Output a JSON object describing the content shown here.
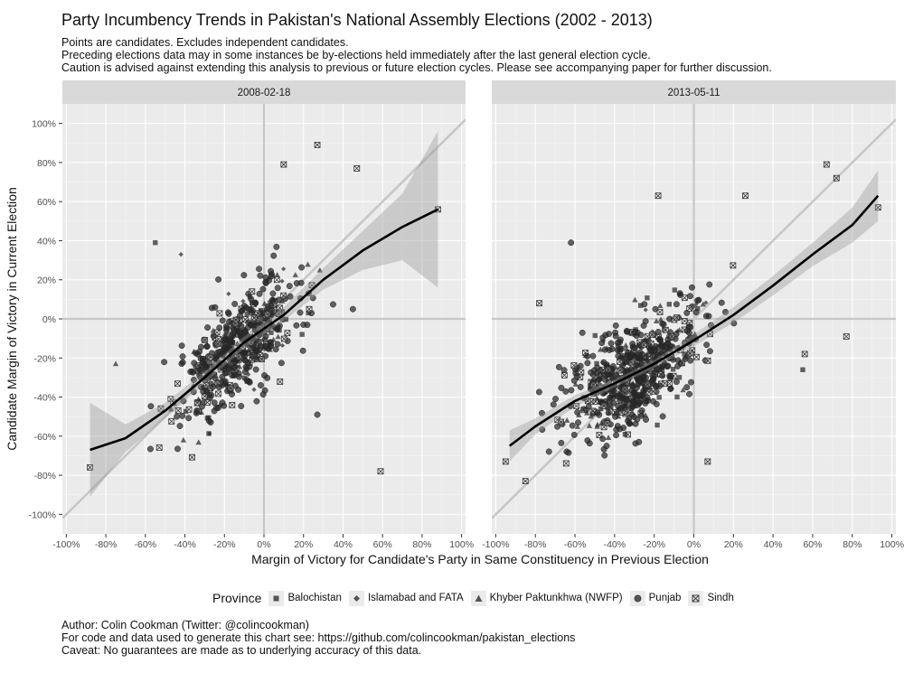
{
  "title": "Party Incumbency Trends in Pakistan's National Assembly Elections (2002 - 2013)",
  "subtitle": [
    "Points are candidates. Excludes independent candidates.",
    "Preceding elections data may in some instances be by-elections held immediately after the last general election cycle.",
    "Caution is advised against extending this analysis to previous or future election cycles. Please see accompanying paper for further discussion."
  ],
  "caption": [
    "Author: Colin Cookman (Twitter: @colincookman)",
    "For code and data used to generate this chart see: https://github.com/colincookman/pakistan_elections",
    "Caveat: No guarantees are made as to underlying accuracy of this data."
  ],
  "legend": {
    "title": "Province",
    "items": [
      {
        "label": "Balochistan",
        "shape": "square"
      },
      {
        "label": "Islamabad and FATA",
        "shape": "diamond"
      },
      {
        "label": "Khyber Paktunkhwa (NWFP)",
        "shape": "triangle"
      },
      {
        "label": "Punjab",
        "shape": "circle"
      },
      {
        "label": "Sindh",
        "shape": "square-x"
      }
    ]
  },
  "colors": {
    "panel_bg": "#ebebeb",
    "strip_bg": "#d9d9d9",
    "grid": "#ffffff",
    "reference": "#c7c7c7",
    "points": "#333333",
    "smooth": "#000000",
    "ribbon": "#999999"
  },
  "chart_data": {
    "type": "scatter",
    "xlabel": "Margin of Victory for Candidate's Party in Same Constituency in Previous Election",
    "ylabel": "Candidate Margin of Victory in Current Election",
    "xlim": [
      -1.02,
      1.02
    ],
    "ylim": [
      -1.1,
      1.1
    ],
    "ticks": [
      -1,
      -0.8,
      -0.6,
      -0.4,
      -0.2,
      0,
      0.2,
      0.4,
      0.6,
      0.8,
      1
    ],
    "tick_labels": [
      "-100%",
      "-80%",
      "-60%",
      "-40%",
      "-20%",
      "0%",
      "20%",
      "40%",
      "60%",
      "80%",
      "100%"
    ],
    "grid": true,
    "legend_position": "bottom",
    "reference_lines": [
      "x=0",
      "y=0",
      "y=x"
    ],
    "facets": [
      {
        "label": "2008-02-18",
        "smooth": {
          "x": [
            -0.88,
            -0.7,
            -0.5,
            -0.3,
            -0.1,
            0.0,
            0.1,
            0.3,
            0.5,
            0.7,
            0.88
          ],
          "y": [
            -0.67,
            -0.61,
            -0.47,
            -0.3,
            -0.12,
            -0.05,
            0.02,
            0.2,
            0.35,
            0.47,
            0.56
          ]
        },
        "ribbon": {
          "lower": [
            -0.91,
            -0.68,
            -0.51,
            -0.33,
            -0.15,
            -0.08,
            -0.01,
            0.15,
            0.25,
            0.3,
            0.16
          ],
          "upper": [
            -0.43,
            -0.54,
            -0.43,
            -0.27,
            -0.09,
            -0.02,
            0.06,
            0.26,
            0.45,
            0.64,
            0.96
          ]
        },
        "highlighted_points": [
          {
            "x": -0.88,
            "y": -0.76,
            "province": "Sindh"
          },
          {
            "x": -0.55,
            "y": 0.39,
            "province": "Balochistan"
          },
          {
            "x": -0.42,
            "y": 0.33,
            "province": "Islamabad and FATA"
          },
          {
            "x": -0.75,
            "y": -0.23,
            "province": "Khyber Paktunkhwa (NWFP)"
          },
          {
            "x": 0.59,
            "y": -0.78,
            "province": "Sindh"
          },
          {
            "x": 0.27,
            "y": 0.89,
            "province": "Sindh"
          },
          {
            "x": 0.1,
            "y": 0.79,
            "province": "Sindh"
          },
          {
            "x": 0.47,
            "y": 0.77,
            "province": "Sindh"
          },
          {
            "x": 0.45,
            "y": 0.05,
            "province": "Punjab"
          },
          {
            "x": 0.27,
            "y": -0.49,
            "province": "Punjab"
          },
          {
            "x": 0.88,
            "y": 0.56,
            "province": "Sindh"
          }
        ]
      },
      {
        "label": "2013-05-11",
        "smooth": {
          "x": [
            -0.93,
            -0.8,
            -0.6,
            -0.4,
            -0.2,
            0.0,
            0.2,
            0.4,
            0.6,
            0.8,
            0.93
          ],
          "y": [
            -0.65,
            -0.55,
            -0.42,
            -0.33,
            -0.23,
            -0.11,
            0.02,
            0.17,
            0.33,
            0.48,
            0.63
          ]
        },
        "ribbon": {
          "lower": [
            -0.73,
            -0.59,
            -0.45,
            -0.35,
            -0.25,
            -0.14,
            -0.02,
            0.12,
            0.27,
            0.39,
            0.5
          ],
          "upper": [
            -0.57,
            -0.51,
            -0.39,
            -0.31,
            -0.21,
            -0.08,
            0.06,
            0.22,
            0.39,
            0.57,
            0.76
          ]
        },
        "highlighted_points": [
          {
            "x": -0.95,
            "y": -0.73,
            "province": "Sindh"
          },
          {
            "x": -0.85,
            "y": -0.83,
            "province": "Sindh"
          },
          {
            "x": -0.78,
            "y": 0.08,
            "province": "Sindh"
          },
          {
            "x": -0.62,
            "y": 0.39,
            "province": "Punjab"
          },
          {
            "x": -0.18,
            "y": 0.63,
            "province": "Sindh"
          },
          {
            "x": 0.26,
            "y": 0.63,
            "province": "Sindh"
          },
          {
            "x": 0.56,
            "y": -0.18,
            "province": "Sindh"
          },
          {
            "x": 0.55,
            "y": -0.26,
            "province": "Balochistan"
          },
          {
            "x": 0.07,
            "y": -0.73,
            "province": "Sindh"
          },
          {
            "x": 0.67,
            "y": 0.79,
            "province": "Sindh"
          },
          {
            "x": 0.72,
            "y": 0.72,
            "province": "Sindh"
          },
          {
            "x": 0.77,
            "y": -0.09,
            "province": "Sindh"
          },
          {
            "x": 0.93,
            "y": 0.57,
            "province": "Sindh"
          }
        ]
      }
    ]
  }
}
